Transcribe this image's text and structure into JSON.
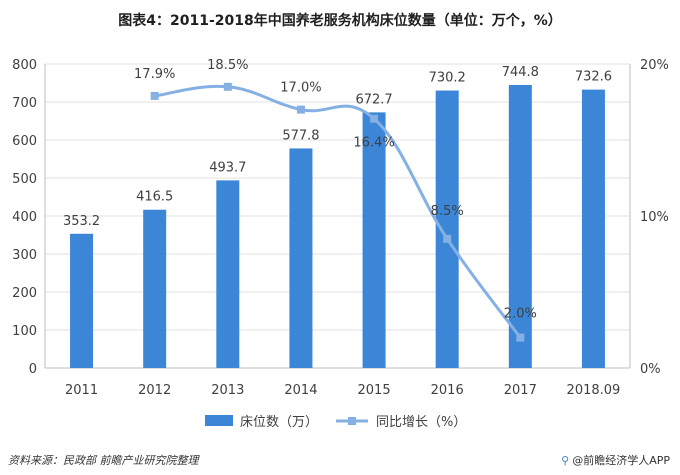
{
  "title": "图表4：2011-2018年中国养老服务机构床位数量（单位：万个，%）",
  "source": "资料来源：民政部  前瞻产业研究院整理",
  "brand": "@前瞻经济学人APP",
  "colors": {
    "bar": "#3b86d6",
    "line": "#84b0e3",
    "axis": "#bfbfbf",
    "grid": "#e0e0e0",
    "text": "#404040"
  },
  "chart_data": {
    "type": "bar",
    "categories": [
      "2011",
      "2012",
      "2013",
      "2014",
      "2015",
      "2016",
      "2017",
      "2018.09"
    ],
    "series": [
      {
        "name": "床位数（万）",
        "type": "bar",
        "axis": "left",
        "values": [
          353.2,
          416.5,
          493.7,
          577.8,
          672.7,
          730.2,
          744.8,
          732.6
        ],
        "labels": [
          "353.2",
          "416.5",
          "493.7",
          "577.8",
          "672.7",
          "730.2",
          "744.8",
          "732.6"
        ]
      },
      {
        "name": "同比增长（%）",
        "type": "line",
        "axis": "right",
        "values": [
          null,
          17.9,
          18.5,
          17.0,
          16.4,
          8.5,
          2.0,
          null
        ],
        "labels": [
          "",
          "17.9%",
          "18.5%",
          "17.0%",
          "16.4%",
          "8.5%",
          "2.0%",
          ""
        ]
      }
    ],
    "ylim_left": [
      0,
      800
    ],
    "yticks_left": [
      0,
      100,
      200,
      300,
      400,
      500,
      600,
      700,
      800
    ],
    "ylim_right": [
      0,
      20
    ],
    "yticks_right": [
      "0%",
      "10%",
      "20%"
    ],
    "grid": true,
    "legend_position": "bottom-center"
  }
}
